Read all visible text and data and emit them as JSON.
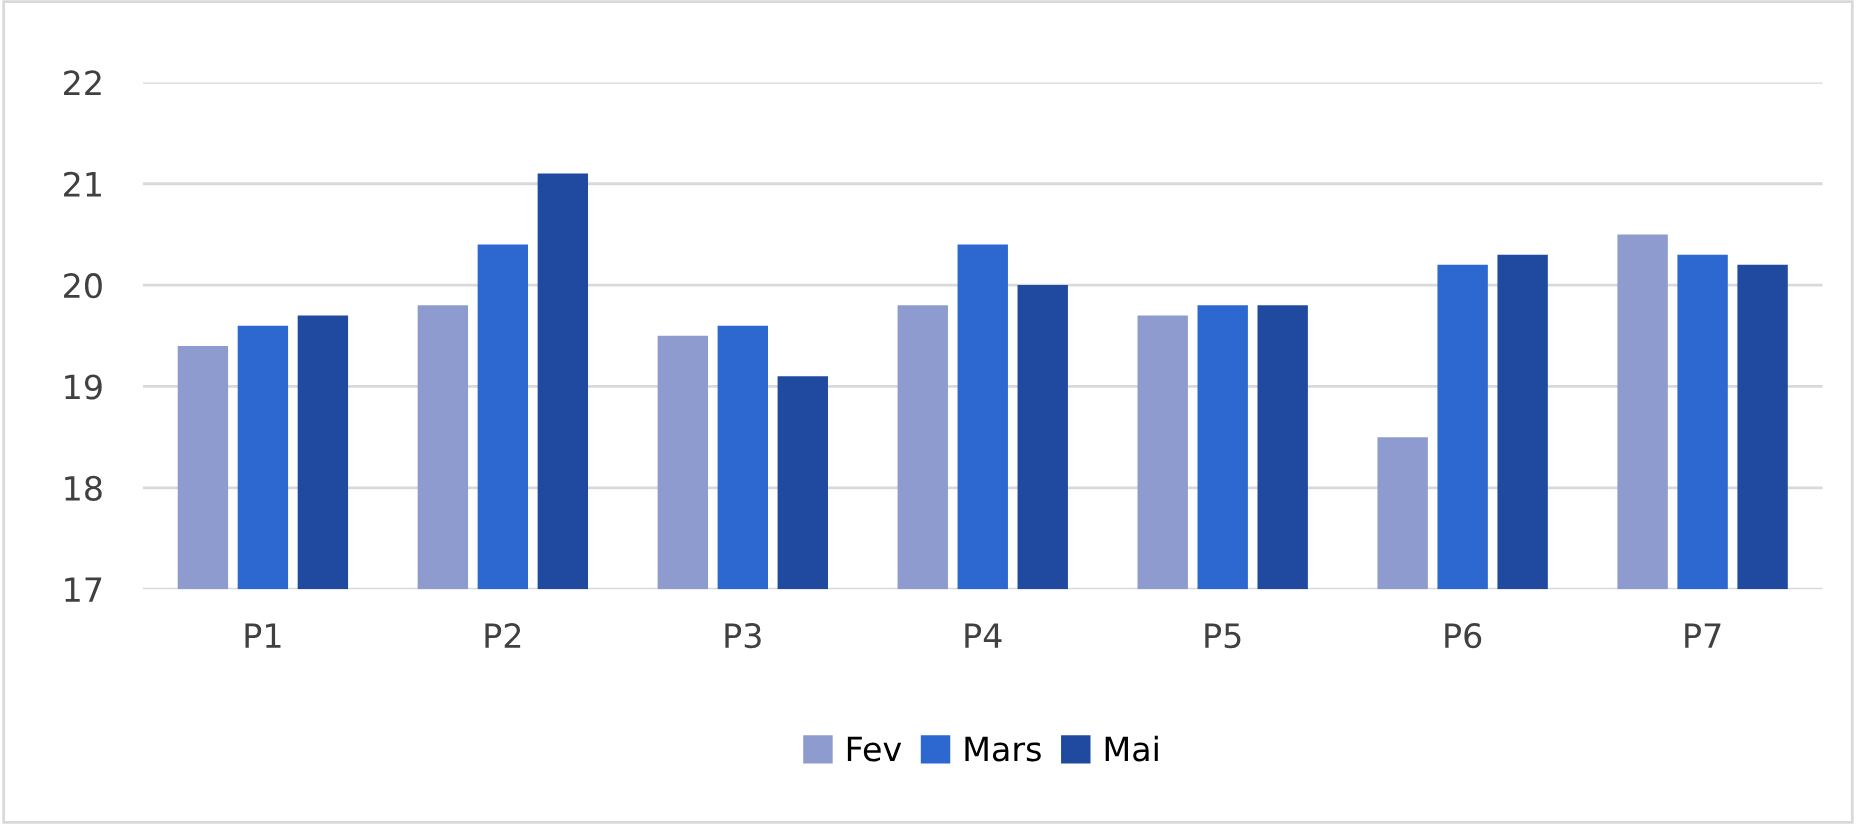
{
  "chart_data": {
    "type": "bar",
    "categories": [
      "P1",
      "P2",
      "P3",
      "P4",
      "P5",
      "P6",
      "P7"
    ],
    "series": [
      {
        "name": "Fev",
        "color": "#8e9bcf",
        "values": [
          19.4,
          19.8,
          19.5,
          19.8,
          19.7,
          18.5,
          20.5
        ]
      },
      {
        "name": "Mars",
        "color": "#2c68d0",
        "values": [
          19.6,
          20.4,
          19.6,
          20.4,
          19.8,
          20.2,
          20.3
        ]
      },
      {
        "name": "Mai",
        "color": "#1f4aa0",
        "values": [
          19.7,
          21.1,
          19.1,
          20.0,
          19.8,
          20.3,
          20.2
        ]
      }
    ],
    "ylim": [
      17,
      22
    ],
    "yticks": [
      17,
      18,
      19,
      20,
      21,
      22
    ],
    "grid": "y",
    "legend": "bottom"
  }
}
